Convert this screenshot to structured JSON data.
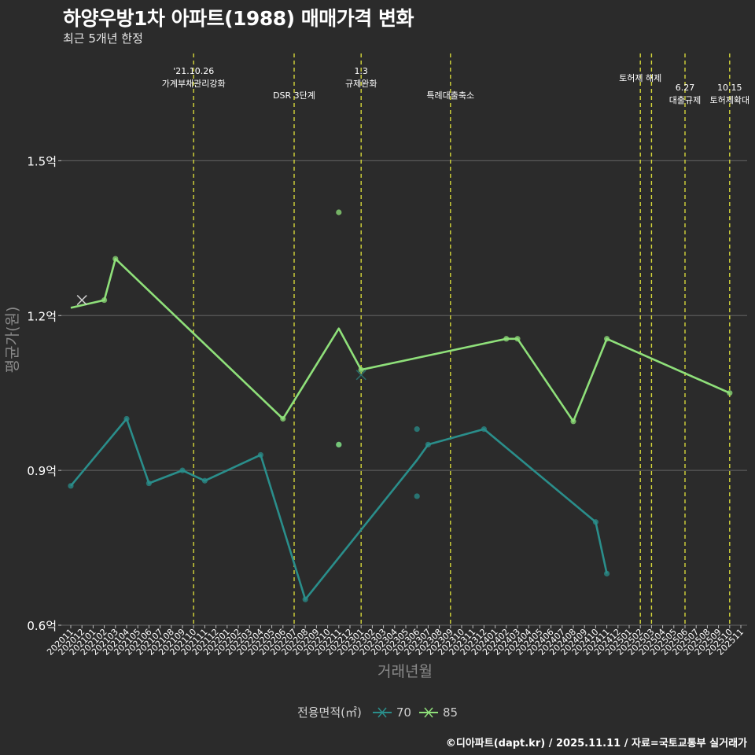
{
  "title": "하양우방1차 아파트(1988) 매매가격 변화",
  "subtitle": "최근 5개년 한정",
  "caption": "©디아파트(dapt.kr) / 2025.11.11 / 자료=국토교통부 실거래가",
  "legend": {
    "title": "전용면적(㎡)",
    "items": [
      {
        "label": "70",
        "color": "#2a8e8b"
      },
      {
        "label": "85",
        "color": "#8fe07a"
      }
    ]
  },
  "colors": {
    "s70": "#2a8e8b",
    "s85": "#8fe07a",
    "vline": "#d4d63a",
    "grid": "#5a5a5a",
    "bg": "#2b2b2b"
  },
  "chart_data": {
    "type": "line",
    "title": "하양우방1차 아파트(1988) 매매가격 변화",
    "xlabel": "거래년월",
    "ylabel": "평균가(원)",
    "ylim": [
      0.6,
      1.72
    ],
    "yticks": [
      {
        "value": 0.6,
        "label": "0.6억"
      },
      {
        "value": 0.9,
        "label": "0.9억"
      },
      {
        "value": 1.2,
        "label": "1.2억"
      },
      {
        "value": 1.5,
        "label": "1.5억"
      }
    ],
    "categories": [
      "202011",
      "202012",
      "202101",
      "202102",
      "202103",
      "202104",
      "202105",
      "202106",
      "202107",
      "202108",
      "202109",
      "202110",
      "202111",
      "202112",
      "202201",
      "202202",
      "202203",
      "202204",
      "202205",
      "202206",
      "202207",
      "202208",
      "202209",
      "202210",
      "202211",
      "202212",
      "202301",
      "202302",
      "202303",
      "202304",
      "202305",
      "202306",
      "202307",
      "202308",
      "202309",
      "202310",
      "202311",
      "202312",
      "202401",
      "202402",
      "202403",
      "202404",
      "202405",
      "202406",
      "202407",
      "202408",
      "202409",
      "202410",
      "202411",
      "202412",
      "202501",
      "202502",
      "202503",
      "202504",
      "202505",
      "202506",
      "202507",
      "202508",
      "202509",
      "202510",
      "202511"
    ],
    "series": [
      {
        "name": "70",
        "line": [
          [
            0,
            0.87
          ],
          [
            5,
            1.0
          ],
          [
            7,
            0.875
          ],
          [
            10,
            0.9
          ],
          [
            12,
            0.88
          ],
          [
            17,
            0.93
          ],
          [
            21,
            0.65
          ],
          [
            31,
            0.92
          ],
          [
            32,
            0.95
          ],
          [
            37,
            0.98
          ],
          [
            47,
            0.8
          ],
          [
            48,
            0.7
          ]
        ],
        "points": [
          [
            0,
            0.87
          ],
          [
            5,
            1.0
          ],
          [
            7,
            0.875
          ],
          [
            10,
            0.9
          ],
          [
            12,
            0.88
          ],
          [
            17,
            0.93
          ],
          [
            21,
            0.65
          ],
          [
            24,
            0.95
          ],
          [
            31,
            0.98
          ],
          [
            31,
            0.85
          ],
          [
            32,
            0.95
          ],
          [
            37,
            0.98
          ],
          [
            47,
            0.8
          ],
          [
            48,
            0.7
          ]
        ],
        "markers": [
          [
            26,
            1.085
          ]
        ]
      },
      {
        "name": "85",
        "line": [
          [
            0,
            1.215
          ],
          [
            3,
            1.23
          ],
          [
            4,
            1.31
          ],
          [
            19,
            1.0
          ],
          [
            24,
            1.175
          ],
          [
            26,
            1.095
          ],
          [
            39,
            1.155
          ],
          [
            40,
            1.155
          ],
          [
            45,
            0.995
          ],
          [
            48,
            1.155
          ],
          [
            59,
            1.05
          ]
        ],
        "points": [
          [
            3,
            1.23
          ],
          [
            4,
            1.31
          ],
          [
            19,
            1.0
          ],
          [
            24,
            1.4
          ],
          [
            24,
            0.95
          ],
          [
            26,
            1.095
          ],
          [
            39,
            1.155
          ],
          [
            40,
            1.155
          ],
          [
            45,
            0.995
          ],
          [
            48,
            1.155
          ],
          [
            59,
            1.05
          ]
        ],
        "markers": [
          [
            1,
            1.23
          ]
        ]
      }
    ],
    "annotations": [
      {
        "x": 11,
        "lines": [
          "'21.10.26",
          "가계부채관리강화"
        ],
        "row": 0
      },
      {
        "x": 20,
        "lines": [
          "DSR 3단계"
        ],
        "row": 2
      },
      {
        "x": 26,
        "lines": [
          "1.3",
          "규제완화"
        ],
        "row": 0
      },
      {
        "x": 34,
        "lines": [
          "특례대출축소"
        ],
        "row": 2
      },
      {
        "x": 51,
        "lines": [
          "토허제 해제"
        ],
        "row": 1
      },
      {
        "x": 52,
        "lines": [],
        "row": 1
      },
      {
        "x": 55,
        "lines": [
          "6.27",
          "대출규제"
        ],
        "row": 1
      },
      {
        "x": 59,
        "lines": [
          "10.15",
          "토허제확대"
        ],
        "row": 1
      }
    ]
  }
}
